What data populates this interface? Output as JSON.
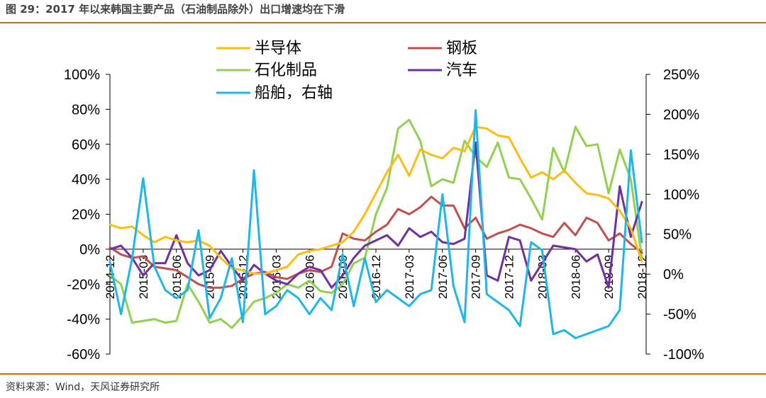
{
  "header": {
    "title": "图 29：2017 年以来韩国主要产品（石油制品除外）出口增速均在下滑"
  },
  "footer": {
    "source": "资料来源：Wind，天风证券研究所"
  },
  "colors": {
    "semiconductor": "#fbbd14",
    "steel": "#c0504d",
    "petrochem": "#92d050",
    "auto": "#7030a0",
    "ships": "#1fb6e8",
    "accent": "#e36c0a"
  },
  "chart_data": {
    "type": "line",
    "categories": [
      "2014-12",
      "2015-01",
      "2015-02",
      "2015-03",
      "2015-04",
      "2015-05",
      "2015-06",
      "2015-07",
      "2015-08",
      "2015-09",
      "2015-10",
      "2015-11",
      "2015-12",
      "2016-01",
      "2016-02",
      "2016-03",
      "2016-04",
      "2016-05",
      "2016-06",
      "2016-07",
      "2016-08",
      "2016-09",
      "2016-10",
      "2016-11",
      "2016-12",
      "2017-01",
      "2017-02",
      "2017-03",
      "2017-04",
      "2017-05",
      "2017-06",
      "2017-07",
      "2017-08",
      "2017-09",
      "2017-10",
      "2017-11",
      "2017-12",
      "2018-01",
      "2018-02",
      "2018-03",
      "2018-04",
      "2018-05",
      "2018-06",
      "2018-07",
      "2018-08",
      "2018-09",
      "2018-10",
      "2018-11",
      "2018-12"
    ],
    "xtick_labels": [
      "2014-12",
      "2015-03",
      "2015-06",
      "2015-09",
      "2015-12",
      "2016-03",
      "2016-06",
      "2016-09",
      "2016-12",
      "2017-03",
      "2017-06",
      "2017-09",
      "2017-12",
      "2018-03",
      "2018-06",
      "2018-09",
      "2018-12"
    ],
    "y_left": {
      "min": -60,
      "max": 100,
      "step": 20,
      "tick_labels": [
        "100%",
        "80%",
        "60%",
        "40%",
        "20%",
        "0%",
        "-20%",
        "-40%",
        "-60%"
      ]
    },
    "y_right": {
      "min": -100,
      "max": 250,
      "step": 50,
      "tick_labels": [
        "250%",
        "200%",
        "150%",
        "100%",
        "50%",
        "0%",
        "-50%",
        "-100%"
      ]
    },
    "series": [
      {
        "name": "半导体",
        "color_key": "semiconductor",
        "axis": "left",
        "values": [
          14,
          12,
          13,
          8,
          4,
          7,
          5,
          4,
          5,
          2,
          -5,
          -11,
          -12,
          -14,
          -14,
          -12,
          -10,
          -3,
          -1,
          0,
          2,
          4,
          10,
          20,
          32,
          44,
          54,
          42,
          57,
          54,
          52,
          58,
          56,
          70,
          69,
          65,
          64,
          52,
          41,
          44,
          40,
          45,
          38,
          32,
          31,
          29,
          22,
          12,
          -7
        ]
      },
      {
        "name": "钢板",
        "color_key": "steel",
        "axis": "left",
        "values": [
          1,
          -3,
          -5,
          -4,
          -10,
          -11,
          -12,
          -16,
          -20,
          -22,
          -22,
          -21,
          -17,
          -14,
          -13,
          -16,
          -17,
          -14,
          -12,
          -13,
          -10,
          9,
          6,
          5,
          10,
          14,
          23,
          20,
          24,
          30,
          25,
          25,
          12,
          18,
          6,
          9,
          11,
          14,
          12,
          9,
          7,
          15,
          8,
          18,
          15,
          5,
          9,
          3,
          -2
        ]
      },
      {
        "name": "石化制品",
        "color_key": "petrochem",
        "axis": "left",
        "values": [
          -15,
          -20,
          -42,
          -41,
          -40,
          -42,
          -41,
          -20,
          -30,
          -42,
          -40,
          -45,
          -38,
          -30,
          -28,
          -25,
          -20,
          -22,
          -18,
          -24,
          -25,
          -20,
          -8,
          -5,
          20,
          35,
          69,
          74,
          62,
          36,
          40,
          38,
          62,
          53,
          47,
          61,
          41,
          40,
          29,
          17,
          58,
          44,
          70,
          59,
          60,
          32,
          57,
          40,
          -5
        ]
      },
      {
        "name": "汽车",
        "color_key": "auto",
        "axis": "left",
        "values": [
          0,
          2,
          -5,
          -15,
          -8,
          -8,
          8,
          -8,
          -15,
          -12,
          -1,
          -10,
          -18,
          -9,
          -14,
          -18,
          -20,
          -14,
          -10,
          -12,
          -22,
          -15,
          -5,
          2,
          5,
          8,
          2,
          12,
          7,
          10,
          4,
          3,
          6,
          61,
          -15,
          -18,
          7,
          5,
          -18,
          -8,
          2,
          1,
          0,
          -7,
          -3,
          -22,
          36,
          7,
          27
        ]
      },
      {
        "name": "船舶，右轴",
        "color_key": "ships",
        "axis": "right",
        "values": [
          15,
          -50,
          20,
          120,
          10,
          -20,
          -30,
          -20,
          55,
          -55,
          -30,
          20,
          -60,
          130,
          -50,
          -40,
          -20,
          -30,
          -50,
          -30,
          -45,
          25,
          -40,
          20,
          -35,
          -20,
          -30,
          -40,
          -25,
          -20,
          100,
          -15,
          -60,
          205,
          -25,
          -35,
          -45,
          -65,
          40,
          30,
          -75,
          -70,
          -80,
          -75,
          -70,
          -65,
          -45,
          155,
          40
        ]
      }
    ],
    "legend_order": [
      0,
      1,
      2,
      3,
      4
    ],
    "legend_position": "top-center"
  }
}
